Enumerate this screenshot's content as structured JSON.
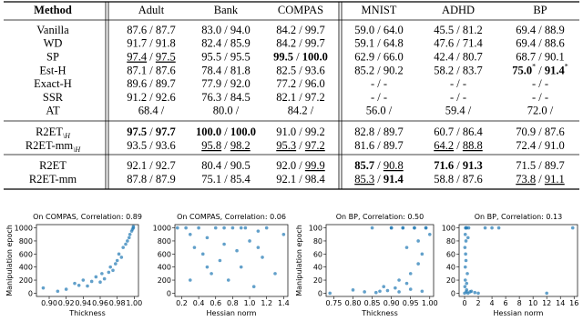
{
  "table": {
    "header": [
      "Method",
      "Adult",
      "Bank",
      "COMPAS",
      "MNIST",
      "ADHD",
      "BP"
    ],
    "groups": [
      [
        [
          "Vanilla",
          "87.6 / 87.7",
          "83.0 / 94.0",
          "84.2 / 99.7",
          "59.0 / 64.0",
          "45.5 / 81.2",
          "69.4 / 88.9"
        ],
        [
          "WD",
          "91.7 / 91.8",
          "82.4 / 85.9",
          "84.2 / 99.7",
          "59.1 / 64.8",
          "47.6 / 71.4",
          "69.4 / 88.6"
        ],
        [
          "SP",
          [
            {
              "text": "97.4",
              "style": "u"
            },
            " / ",
            {
              "text": "97.5",
              "style": "u"
            }
          ],
          "95.5 / 95.5",
          [
            {
              "text": "99.5",
              "style": "b"
            },
            " / ",
            {
              "text": "100.0",
              "style": "b"
            }
          ],
          "62.9 / 66.0",
          "42.4 / 80.7",
          "68.7 / 90.1"
        ],
        [
          "Est-H",
          "87.1 / 87.6",
          "78.4 / 81.8",
          "82.5 / 93.6",
          "85.2 / 90.2",
          "58.2 / 83.7",
          [
            {
              "text": "75.0",
              "style": "b"
            },
            {
              "text": "*",
              "style": "sup"
            },
            " / ",
            {
              "text": "91.4",
              "style": "b"
            },
            {
              "text": "*",
              "style": "sup"
            }
          ]
        ],
        [
          "Exact-H",
          "89.6 / 89.7",
          "77.9 / 92.0",
          "77.2 / 96.0",
          "- / -",
          "- / -",
          "- / -"
        ],
        [
          "SSR",
          "91.2 / 92.6",
          "76.3 / 84.5",
          "82.1 / 97.2",
          "- / -",
          "- / -",
          "- / -"
        ],
        [
          "AT",
          "68.4 /",
          "80.0 /",
          "84.2 /",
          "56.0 /",
          "59.4 /",
          "72.0 /"
        ]
      ],
      [
        [
          [
            "R2ET",
            {
              "text": "\\H",
              "style": "sub"
            }
          ],
          [
            {
              "text": "97.5",
              "style": "b"
            },
            " / ",
            {
              "text": "97.7",
              "style": "b"
            }
          ],
          [
            {
              "text": "100.0",
              "style": "b"
            },
            " / ",
            {
              "text": "100.0",
              "style": "b"
            }
          ],
          "91.0 / 99.2",
          "82.8 / 89.7",
          "60.7 / 86.4",
          "70.9 / 87.6"
        ],
        [
          [
            "R2ET-mm",
            {
              "text": "\\H",
              "style": "sub"
            }
          ],
          "93.5 / 93.6",
          [
            {
              "text": "95.8",
              "style": "u"
            },
            " / ",
            {
              "text": "98.2",
              "style": "u"
            }
          ],
          [
            {
              "text": "95.3",
              "style": "u"
            },
            " / ",
            {
              "text": "97.2",
              "style": "u"
            }
          ],
          "81.6 / 89.7",
          [
            {
              "text": "64.2",
              "style": "u"
            },
            " / ",
            {
              "text": "88.8",
              "style": "u"
            }
          ],
          "72.4 / 91.0"
        ]
      ],
      [
        [
          "R2ET",
          "92.1 / 92.7",
          "80.4 / 90.5",
          [
            "92.0 / ",
            {
              "text": "99.9",
              "style": "u"
            }
          ],
          [
            {
              "text": "85.7",
              "style": "b"
            },
            " / ",
            {
              "text": "90.8",
              "style": "u"
            }
          ],
          [
            {
              "text": "71.6",
              "style": "b"
            },
            " / ",
            {
              "text": "91.3",
              "style": "b"
            }
          ],
          "71.5 / 89.7"
        ],
        [
          "R2ET-mm",
          "87.8 / 87.9",
          "75.1 / 85.4",
          "92.1 / 98.4",
          [
            {
              "text": "85.3",
              "style": "u"
            },
            " / ",
            {
              "text": "91.4",
              "style": "b"
            }
          ],
          "58.8 / 87.6",
          [
            {
              "text": "73.8",
              "style": "u"
            },
            " / ",
            {
              "text": "91.1",
              "style": "u"
            }
          ]
        ]
      ]
    ]
  },
  "chart_data": [
    {
      "type": "scatter",
      "title": "On COMPAS, Correlation: 0.89",
      "xlabel": "Thickness",
      "ylabel": "Manipulation epoch",
      "color": "#1f77b4",
      "xlim": [
        0.885,
        1.005
      ],
      "ylim": [
        -50,
        1050
      ],
      "xticks": [
        {
          "value": 0.9,
          "label": "0.90"
        },
        0.92,
        0.94,
        0.96,
        0.98,
        {
          "value": 1,
          "label": "1.00"
        }
      ],
      "yticks": [
        0,
        200,
        400,
        600,
        800,
        1000
      ],
      "x": [
        0.893,
        0.91,
        0.92,
        0.93,
        0.935,
        0.94,
        0.945,
        0.95,
        0.955,
        0.96,
        0.962,
        0.965,
        0.97,
        0.972,
        0.975,
        0.978,
        0.98,
        0.982,
        0.985,
        0.987,
        0.99,
        0.992,
        0.994,
        0.995,
        0.997,
        0.998,
        0.999,
        0.999
      ],
      "y": [
        80,
        30,
        60,
        150,
        120,
        200,
        110,
        180,
        250,
        170,
        300,
        220,
        320,
        400,
        350,
        450,
        500,
        600,
        550,
        700,
        750,
        800,
        850,
        900,
        950,
        980,
        1000,
        1020
      ]
    },
    {
      "type": "scatter",
      "title": "On COMPAS, Correlation: 0.06",
      "xlabel": "Hessian norm",
      "color": "#1f77b4",
      "xlim": [
        0.12,
        1.45
      ],
      "ylim": [
        -50,
        1050
      ],
      "xticks": [
        0.2,
        0.4,
        0.6,
        0.8,
        {
          "value": 1,
          "label": "1.0"
        },
        1.2,
        1.4
      ],
      "yticks": [
        0,
        200,
        400,
        600,
        800,
        1000
      ],
      "x": [
        0.15,
        0.25,
        0.3,
        0.35,
        0.4,
        0.45,
        0.5,
        0.55,
        0.6,
        0.65,
        0.7,
        0.75,
        0.8,
        0.85,
        0.9,
        0.95,
        1.0,
        1.05,
        1.1,
        1.15,
        1.2,
        1.3,
        1.4,
        0.3,
        0.5,
        0.7,
        0.9,
        1.1
      ],
      "y": [
        1000,
        1000,
        900,
        700,
        1000,
        600,
        850,
        300,
        1000,
        500,
        750,
        200,
        1000,
        650,
        400,
        1000,
        800,
        100,
        950,
        550,
        1000,
        300,
        900,
        200,
        400,
        1000,
        1000,
        700
      ]
    },
    {
      "type": "scatter",
      "title": "On BP, Correlation: 0.50",
      "xlabel": "Thickness",
      "ylabel": "Manipulation epoch",
      "color": "#1f77b4",
      "xlim": [
        0.73,
        1.01
      ],
      "ylim": [
        -5,
        105
      ],
      "xticks": [
        0.75,
        {
          "value": 0.8,
          "label": "0.80"
        },
        0.85,
        {
          "value": 0.9,
          "label": "0.90"
        },
        0.95,
        {
          "value": 1,
          "label": "1.00"
        }
      ],
      "yticks": [
        0,
        20,
        40,
        60,
        80,
        100
      ],
      "x": [
        0.74,
        0.8,
        0.83,
        0.85,
        0.87,
        0.88,
        0.9,
        0.91,
        0.92,
        0.93,
        0.94,
        0.95,
        0.96,
        0.97,
        0.98,
        0.99,
        1.0,
        0.86,
        0.89,
        0.92,
        0.95,
        0.98,
        0.9,
        0.93,
        0.96,
        0.99,
        0.94,
        0.97
      ],
      "y": [
        0,
        5,
        2,
        100,
        3,
        10,
        100,
        8,
        20,
        100,
        15,
        30,
        100,
        45,
        60,
        100,
        90,
        1,
        4,
        2,
        6,
        3,
        100,
        100,
        100,
        100,
        70,
        80
      ]
    },
    {
      "type": "scatter",
      "title": "On BP, Correlation: 0.13",
      "xlabel": "Hessian norm",
      "color": "#1f77b4",
      "xlim": [
        -0.8,
        16.5
      ],
      "ylim": [
        -5,
        105
      ],
      "xticks": [
        0,
        2,
        4,
        6,
        8,
        10,
        12,
        14,
        16
      ],
      "yticks": [
        0,
        20,
        40,
        60,
        80,
        100
      ],
      "x": [
        0,
        0.05,
        0.1,
        0.1,
        0.15,
        0.2,
        0.2,
        0.3,
        0.3,
        0.4,
        0.5,
        0.6,
        0.8,
        1.0,
        1.5,
        2.0,
        3,
        4,
        5,
        12,
        15.8,
        0.1,
        0.2,
        0.05,
        0.3,
        0.15,
        0.25,
        0.5
      ],
      "y": [
        0,
        10,
        20,
        40,
        60,
        80,
        100,
        100,
        5,
        30,
        0,
        100,
        2,
        3,
        1,
        0,
        100,
        100,
        100,
        0,
        100,
        90,
        50,
        70,
        15,
        100,
        2,
        85
      ]
    }
  ]
}
